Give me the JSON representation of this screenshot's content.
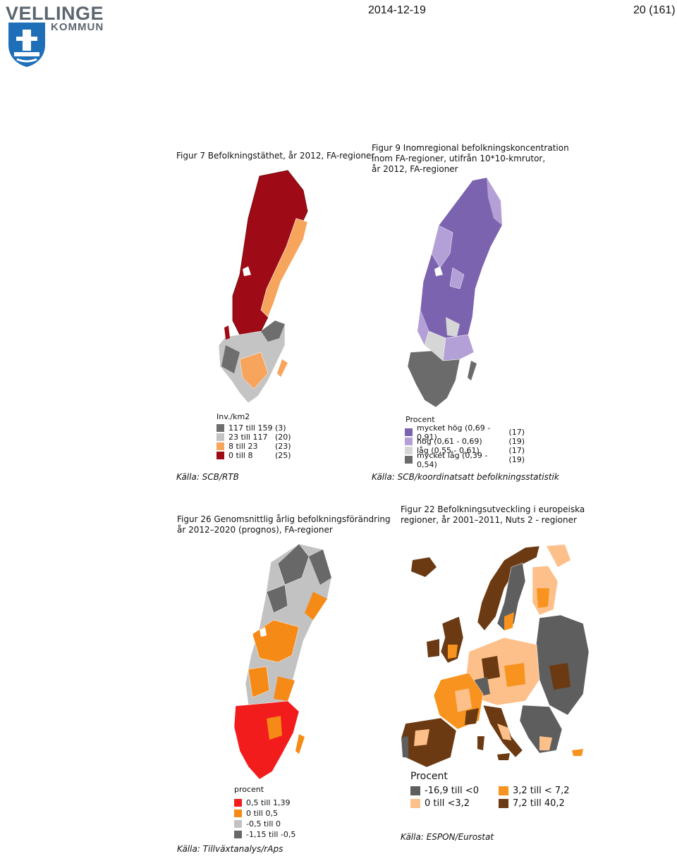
{
  "header": {
    "logo_line1": "VELLINGE",
    "logo_line2": "KOMMUN",
    "date": "2014-12-19",
    "page": "20 (161)"
  },
  "maps": [
    {
      "title": "Figur 7 Befolkningstäthet, år 2012, FA-regioner",
      "legend_title": "Inv./km2",
      "legend": [
        {
          "label": "117 till 159",
          "count": "(3)",
          "color": "#6e6e6e"
        },
        {
          "label": "23 till 117",
          "count": "(20)",
          "color": "#c4c4c4"
        },
        {
          "label": "8 till  23",
          "count": "(23)",
          "color": "#f7a45c"
        },
        {
          "label": "0 till   8",
          "count": "(25)",
          "color": "#9e0b16"
        }
      ],
      "source": "Källa: SCB/RTB"
    },
    {
      "title_lines": [
        "Figur 9 Inomregional befolkningskoncentration",
        "inom FA-regioner, utifrån 10*10-kmrutor,",
        "år 2012, FA-regioner"
      ],
      "legend_title": "Procent",
      "legend": [
        {
          "label": "mycket hög (0,69 - 0,91)",
          "count": "(17)",
          "color": "#7b63b0"
        },
        {
          "label": "hög (0,61 - 0,69)",
          "count": "(19)",
          "color": "#b3a0d6"
        },
        {
          "label": "låg (0,55 - 0,61)",
          "count": "(17)",
          "color": "#d6d6d6"
        },
        {
          "label": "mycket låg (0,39 - 0,54)",
          "count": "(19)",
          "color": "#6b6b6b"
        }
      ],
      "source": "Källa: SCB/koordinatsatt befolkningsstatistik"
    },
    {
      "title_lines": [
        "Figur 26 Genomsnittlig årlig befolkningsförändring",
        "år 2012–2020 (prognos), FA-regioner"
      ],
      "legend_title": "procent",
      "legend": [
        {
          "label": "0,5  till  1,39",
          "color": "#f21c1c"
        },
        {
          "label": "0     till  0,5",
          "color": "#f58a16"
        },
        {
          "label": "-0,5  till  0",
          "color": "#c2c2c2"
        },
        {
          "label": "-1,15 till -0,5",
          "color": "#686868"
        }
      ],
      "source": "Källa: Tillväxtanalys/rAps"
    },
    {
      "title_lines": [
        "Figur 22 Befolkningsutveckling i europeiska",
        "regioner, år 2001–2011, Nuts 2 - regioner"
      ],
      "legend_title": "Procent",
      "legend": [
        {
          "label": "-16,9 till <0",
          "color": "#5e5e5e"
        },
        {
          "label": "0    till <3,2",
          "color": "#fdc08a"
        },
        {
          "label": "3,2 till <  7,2",
          "color": "#f7931e"
        },
        {
          "label": "7,2 till    40,2",
          "color": "#6b3a12"
        }
      ],
      "source": "Källa: ESPON/Eurostat"
    }
  ]
}
